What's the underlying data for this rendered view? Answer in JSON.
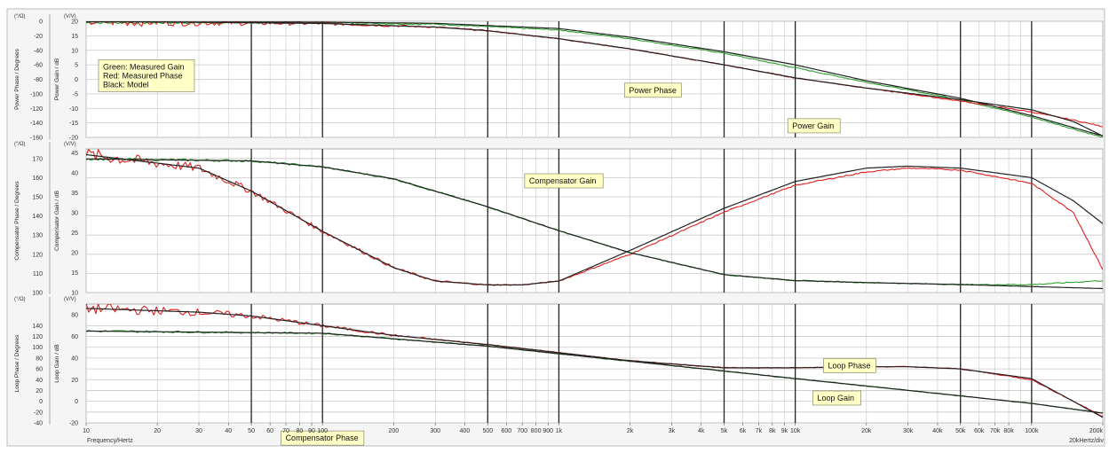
{
  "colors": {
    "measured_gain": "#2ea02e",
    "measured_phase": "#e02020",
    "model": "#222222",
    "label_fill": "#ffffc6",
    "grid_major": "#222222",
    "grid_minor": "#c8c8c8"
  },
  "x_axis": {
    "label": "Frequency/Hertz",
    "end_label": "20kHertz/div",
    "scale": "log",
    "range": [
      10,
      200000
    ],
    "major_lines": [
      50,
      100,
      500,
      1000,
      5000,
      10000,
      50000,
      100000
    ],
    "tick_labels": [
      {
        "v": 10,
        "t": "10"
      },
      {
        "v": 20,
        "t": "20"
      },
      {
        "v": 30,
        "t": "30"
      },
      {
        "v": 40,
        "t": "40"
      },
      {
        "v": 50,
        "t": "50"
      },
      {
        "v": 60,
        "t": "60"
      },
      {
        "v": 70,
        "t": "70"
      },
      {
        "v": 80,
        "t": "80"
      },
      {
        "v": 90,
        "t": "90"
      },
      {
        "v": 100,
        "t": "100"
      },
      {
        "v": 200,
        "t": "200"
      },
      {
        "v": 300,
        "t": "300"
      },
      {
        "v": 400,
        "t": "400"
      },
      {
        "v": 500,
        "t": "500"
      },
      {
        "v": 600,
        "t": "600"
      },
      {
        "v": 700,
        "t": "700"
      },
      {
        "v": 800,
        "t": "800"
      },
      {
        "v": 900,
        "t": "900"
      },
      {
        "v": 1000,
        "t": "1k"
      },
      {
        "v": 2000,
        "t": "2k"
      },
      {
        "v": 3000,
        "t": "3k"
      },
      {
        "v": 4000,
        "t": "4k"
      },
      {
        "v": 5000,
        "t": "5k"
      },
      {
        "v": 6000,
        "t": "6k"
      },
      {
        "v": 7000,
        "t": "7k"
      },
      {
        "v": 8000,
        "t": "8k"
      },
      {
        "v": 9000,
        "t": "9k"
      },
      {
        "v": 10000,
        "t": "10k"
      },
      {
        "v": 20000,
        "t": "20k"
      },
      {
        "v": 30000,
        "t": "30k"
      },
      {
        "v": 40000,
        "t": "40k"
      },
      {
        "v": 50000,
        "t": "50k"
      },
      {
        "v": 60000,
        "t": "60k"
      },
      {
        "v": 70000,
        "t": "70k"
      },
      {
        "v": 80000,
        "t": "80k"
      },
      {
        "v": 100000,
        "t": "100k"
      },
      {
        "v": 200000,
        "t": "200k"
      }
    ]
  },
  "chart_data": [
    {
      "type": "line",
      "id": "power",
      "left_axis": {
        "label": "Power Phase / Degrees",
        "unit": "(°/Ω)",
        "range": [
          -160,
          0
        ],
        "ticks": [
          0,
          -20,
          -40,
          -60,
          -80,
          -100,
          -120,
          -140,
          -160
        ]
      },
      "right_axis": {
        "label": "Power Gain / dB",
        "unit": "(V/V)",
        "range": [
          -20,
          20
        ],
        "ticks": [
          20,
          15,
          10,
          5,
          0,
          -5,
          -10,
          -15,
          -20
        ]
      },
      "series": [
        {
          "role": "gain",
          "curve": "measured_gain",
          "axis": "right",
          "x": [
            10,
            100,
            300,
            1000,
            2000,
            5000,
            10000,
            20000,
            50000,
            100000,
            200000
          ],
          "y": [
            19.5,
            19.5,
            19,
            17,
            14,
            9,
            4,
            -1,
            -7,
            -13,
            -20
          ]
        },
        {
          "role": "gain",
          "curve": "model",
          "axis": "right",
          "x": [
            10,
            100,
            300,
            1000,
            2000,
            5000,
            10000,
            20000,
            50000,
            100000,
            200000
          ],
          "y": [
            19.8,
            19.7,
            19.3,
            17.5,
            14.5,
            9.5,
            5,
            -0.5,
            -6.5,
            -12.5,
            -19.5
          ]
        },
        {
          "role": "phase",
          "curve": "measured_phase",
          "axis": "left",
          "x": [
            10,
            100,
            300,
            500,
            1000,
            2000,
            5000,
            10000,
            20000,
            50000,
            100000,
            150000,
            200000
          ],
          "y": [
            0,
            -3,
            -8,
            -13,
            -24,
            -38,
            -60,
            -78,
            -92,
            -110,
            -125,
            -136,
            -145
          ]
        },
        {
          "role": "phase",
          "curve": "model",
          "axis": "left",
          "x": [
            10,
            100,
            300,
            500,
            1000,
            2000,
            5000,
            10000,
            20000,
            50000,
            100000,
            150000,
            200000
          ],
          "y": [
            0,
            -3,
            -8,
            -13,
            -24,
            -38,
            -60,
            -78,
            -92,
            -108,
            -122,
            -138,
            -158
          ]
        }
      ],
      "labels": [
        {
          "text": "Power Gain",
          "x": 12000,
          "y": -16
        },
        {
          "text": "Power Phase",
          "x": 2500,
          "y": -95
        },
        {
          "lines": [
            "Green: Measured Gain",
            "Red: Measured Phase",
            "Black: Model"
          ],
          "x": 18,
          "y": -75
        }
      ]
    },
    {
      "type": "line",
      "id": "compensator",
      "left_axis": {
        "label": "Compensator Phase / Degrees",
        "unit": "(°/Ω)",
        "range": [
          100,
          175
        ],
        "ticks": [
          170,
          160,
          150,
          140,
          130,
          120,
          110,
          100
        ]
      },
      "right_axis": {
        "label": "Compensator Gain / dB",
        "unit": "(V/V)",
        "range": [
          10,
          46
        ],
        "ticks": [
          45,
          40,
          35,
          30,
          25,
          20,
          15,
          10
        ]
      },
      "series": [
        {
          "role": "gain",
          "curve": "measured_gain",
          "axis": "right",
          "x": [
            10,
            50,
            100,
            200,
            500,
            1000,
            2000,
            5000,
            10000,
            20000,
            50000,
            100000,
            200000
          ],
          "y": [
            43.5,
            43,
            41.5,
            38.5,
            31.5,
            25.5,
            20,
            14.5,
            13,
            12.5,
            12,
            12,
            13
          ]
        },
        {
          "role": "gain",
          "curve": "model",
          "axis": "right",
          "x": [
            10,
            50,
            100,
            200,
            500,
            1000,
            2000,
            5000,
            10000,
            20000,
            50000,
            100000,
            200000
          ],
          "y": [
            43.5,
            43,
            41.5,
            38.5,
            31.5,
            25.5,
            20,
            14.5,
            13,
            12.5,
            12,
            11.5,
            11
          ]
        },
        {
          "role": "phase",
          "curve": "measured_phase",
          "axis": "left",
          "x": [
            10,
            30,
            50,
            100,
            200,
            300,
            500,
            700,
            1000,
            2000,
            5000,
            10000,
            20000,
            30000,
            50000,
            100000,
            150000,
            200000
          ],
          "y": [
            172,
            165,
            153,
            132,
            113,
            106,
            104,
            104,
            106,
            120,
            142,
            156,
            163,
            165,
            164,
            157,
            142,
            112
          ]
        },
        {
          "role": "phase",
          "curve": "model",
          "axis": "left",
          "x": [
            10,
            30,
            50,
            100,
            200,
            300,
            500,
            700,
            1000,
            2000,
            5000,
            10000,
            20000,
            30000,
            50000,
            100000,
            150000,
            200000
          ],
          "y": [
            172,
            165,
            153,
            132,
            113,
            106,
            104,
            104,
            106,
            122,
            144,
            158,
            165,
            166,
            165,
            160,
            148,
            136
          ]
        }
      ],
      "labels": [
        {
          "text": "Compensator Gain",
          "x": 1050,
          "y": 38
        },
        {
          "text": "Compensator Phase",
          "x": 100,
          "y": 24
        }
      ]
    },
    {
      "type": "line",
      "id": "loop",
      "left_axis": {
        "label": "Loop Phase / Degrees",
        "unit": "(°/Ω)",
        "range": [
          -40,
          180
        ],
        "ticks": [
          140,
          120,
          100,
          80,
          60,
          40,
          20,
          0,
          -20,
          -40
        ]
      },
      "right_axis": {
        "label": "Loop Gain / dB",
        "unit": "(V/V)",
        "range": [
          -20,
          90
        ],
        "ticks": [
          80,
          60,
          40,
          20,
          0,
          -20
        ]
      },
      "series": [
        {
          "role": "gain",
          "curve": "measured_gain",
          "axis": "right",
          "x": [
            10,
            100,
            500,
            1000,
            5000,
            10000,
            50000,
            100000,
            200000
          ],
          "y": [
            65,
            63,
            51,
            44,
            28,
            21,
            5,
            -2,
            -11
          ]
        },
        {
          "role": "gain",
          "curve": "model",
          "axis": "right",
          "x": [
            10,
            100,
            500,
            1000,
            5000,
            10000,
            50000,
            100000,
            200000
          ],
          "y": [
            65,
            63,
            51,
            44,
            28,
            21,
            5,
            -2,
            -11
          ]
        },
        {
          "role": "phase",
          "curve": "measured_phase",
          "axis": "left",
          "x": [
            10,
            30,
            50,
            100,
            200,
            500,
            1000,
            2000,
            5000,
            10000,
            20000,
            30000,
            50000,
            100000,
            200000
          ],
          "y": [
            172,
            165,
            158,
            140,
            122,
            105,
            90,
            75,
            62,
            62,
            64,
            64,
            60,
            40,
            -28
          ]
        },
        {
          "role": "phase",
          "curve": "model",
          "axis": "left",
          "x": [
            10,
            30,
            50,
            100,
            200,
            500,
            1000,
            2000,
            5000,
            10000,
            20000,
            30000,
            50000,
            100000,
            200000
          ],
          "y": [
            172,
            165,
            158,
            140,
            122,
            105,
            90,
            75,
            62,
            62,
            64,
            64,
            60,
            42,
            -30
          ]
        }
      ],
      "labels": [
        {
          "text": "Loop Phase",
          "x": 17000,
          "y": 66
        },
        {
          "text": "Loop Gain",
          "x": 15000,
          "y": 3
        }
      ]
    }
  ]
}
